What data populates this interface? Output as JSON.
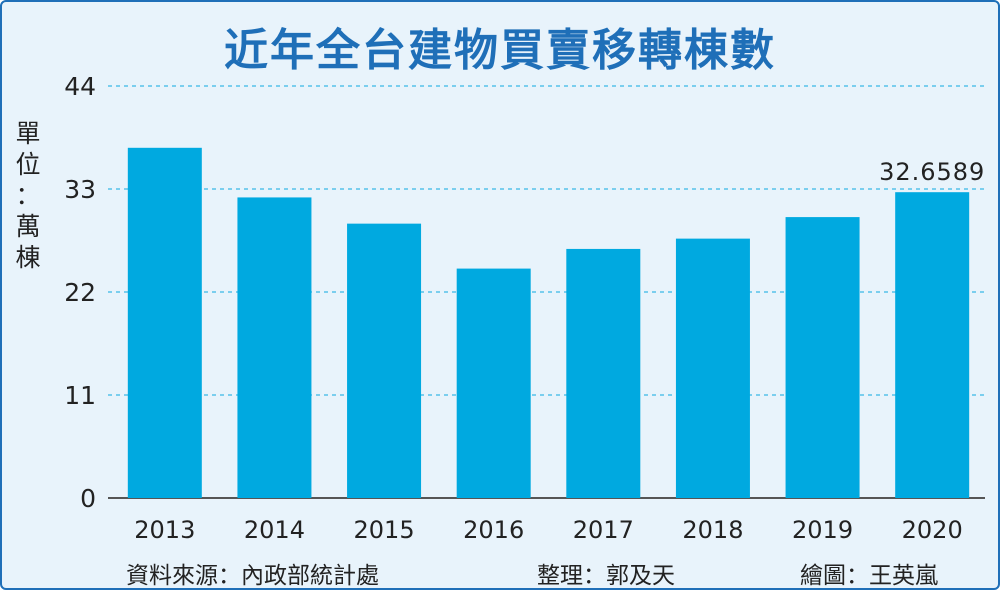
{
  "title": "近年全台建物買賣移轉棟數",
  "unit_chars": [
    "單",
    "位",
    "：",
    "萬",
    "棟"
  ],
  "colors": {
    "bar": "#00a9e0",
    "title": "#1f6fb8",
    "grid": "#39b8e6",
    "axis": "#555555",
    "background": "#e8f3fb"
  },
  "chart_data": {
    "type": "bar",
    "title": "近年全台建物買賣移轉棟數",
    "ylabel": "單位：萬棟",
    "xlabel": "",
    "categories": [
      "2013",
      "2014",
      "2015",
      "2016",
      "2017",
      "2018",
      "2019",
      "2020"
    ],
    "values": [
      37.4,
      32.1,
      29.3,
      24.5,
      26.6,
      27.7,
      30.0,
      32.6589
    ],
    "ylim": [
      0,
      44
    ],
    "yticks": [
      0,
      11,
      22,
      33,
      44
    ],
    "grid": true,
    "grid_style": "dashed",
    "annotations": [
      {
        "category": "2020",
        "text": "32.6589"
      }
    ]
  },
  "footer": {
    "source": "資料來源：內政部統計處",
    "editor": "整理：郭及天",
    "illustrator": "繪圖：王英嵐"
  }
}
